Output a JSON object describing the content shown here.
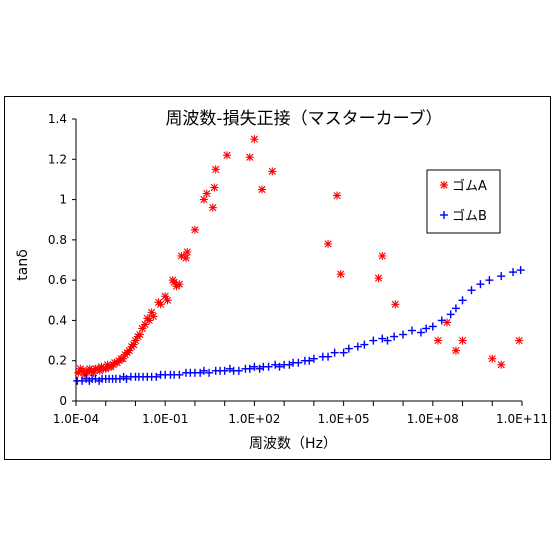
{
  "chart_data": {
    "type": "scatter",
    "title": "周波数-損失正接（マスターカーブ）",
    "xlabel": "周波数（Hz）",
    "ylabel": "tanδ",
    "x_scale": "log",
    "xlim": [
      0.0001,
      100000000000
    ],
    "ylim": [
      0,
      1.4
    ],
    "x_ticks": [
      0.0001,
      0.1,
      100,
      100000,
      100000000,
      100000000000
    ],
    "x_tick_labels": [
      "1.0E-04",
      "1.0E-01",
      "1.0E+02",
      "1.0E+05",
      "1.0E+08",
      "1.0E+11"
    ],
    "y_ticks": [
      0,
      0.2,
      0.4,
      0.6,
      0.8,
      1,
      1.2,
      1.4
    ],
    "y_tick_labels": [
      "0",
      "0.2",
      "0.4",
      "0.6",
      "0.8",
      "1",
      "1.2",
      "1.4"
    ],
    "grid": false,
    "legend_position": "right",
    "series": [
      {
        "name": "ゴムA",
        "marker": "asterisk",
        "color": "#ff0000",
        "points": [
          [
            0.00012,
            0.14
          ],
          [
            0.00014,
            0.16
          ],
          [
            0.00016,
            0.15
          ],
          [
            0.00019,
            0.13
          ],
          [
            0.00022,
            0.15
          ],
          [
            0.00025,
            0.14
          ],
          [
            0.00029,
            0.16
          ],
          [
            0.00033,
            0.15
          ],
          [
            0.00039,
            0.14
          ],
          [
            0.00046,
            0.16
          ],
          [
            0.00054,
            0.16
          ],
          [
            0.00063,
            0.15
          ],
          [
            0.00072,
            0.17
          ],
          [
            0.00083,
            0.16
          ],
          [
            0.001,
            0.16
          ],
          [
            0.00115,
            0.18
          ],
          [
            0.0013,
            0.17
          ],
          [
            0.0015,
            0.17
          ],
          [
            0.0018,
            0.18
          ],
          [
            0.002,
            0.19
          ],
          [
            0.0024,
            0.19
          ],
          [
            0.0028,
            0.2
          ],
          [
            0.0033,
            0.21
          ],
          [
            0.0038,
            0.21
          ],
          [
            0.0045,
            0.23
          ],
          [
            0.0053,
            0.24
          ],
          [
            0.0062,
            0.25
          ],
          [
            0.0074,
            0.27
          ],
          [
            0.0087,
            0.28
          ],
          [
            0.01,
            0.3
          ],
          [
            0.012,
            0.32
          ],
          [
            0.014,
            0.33
          ],
          [
            0.017,
            0.36
          ],
          [
            0.021,
            0.38
          ],
          [
            0.025,
            0.41
          ],
          [
            0.029,
            0.4
          ],
          [
            0.035,
            0.44
          ],
          [
            0.04,
            0.42
          ],
          [
            0.06,
            0.49
          ],
          [
            0.07,
            0.48
          ],
          [
            0.1,
            0.52
          ],
          [
            0.12,
            0.5
          ],
          [
            0.18,
            0.6
          ],
          [
            0.2,
            0.59
          ],
          [
            0.24,
            0.57
          ],
          [
            0.3,
            0.58
          ],
          [
            0.35,
            0.72
          ],
          [
            0.5,
            0.71
          ],
          [
            0.55,
            0.74
          ],
          [
            1,
            0.85
          ],
          [
            2,
            1
          ],
          [
            2.5,
            1.03
          ],
          [
            4,
            0.96
          ],
          [
            4.5,
            1.06
          ],
          [
            5,
            1.15
          ],
          [
            12,
            1.22
          ],
          [
            70,
            1.21
          ],
          [
            100,
            1.3
          ],
          [
            180,
            1.05
          ],
          [
            400,
            1.14
          ],
          [
            30000,
            0.78
          ],
          [
            60000,
            1.02
          ],
          [
            80000,
            0.63
          ],
          [
            1500000,
            0.61
          ],
          [
            2000000,
            0.72
          ],
          [
            5500000,
            0.48
          ],
          [
            150000000,
            0.3
          ],
          [
            300000000,
            0.39
          ],
          [
            600000000,
            0.25
          ],
          [
            1000000000,
            0.3
          ],
          [
            10000000000,
            0.21
          ],
          [
            20000000000,
            0.18
          ],
          [
            80000000000,
            0.3
          ]
        ]
      },
      {
        "name": "ゴムB",
        "marker": "plus",
        "color": "#0000ff",
        "points": [
          [
            0.00011,
            0.1
          ],
          [
            0.00016,
            0.1
          ],
          [
            0.00022,
            0.11
          ],
          [
            0.00028,
            0.1
          ],
          [
            0.00035,
            0.11
          ],
          [
            0.00045,
            0.11
          ],
          [
            0.0006,
            0.1
          ],
          [
            0.00075,
            0.11
          ],
          [
            0.001,
            0.11
          ],
          [
            0.0013,
            0.11
          ],
          [
            0.0017,
            0.11
          ],
          [
            0.0022,
            0.11
          ],
          [
            0.003,
            0.11
          ],
          [
            0.004,
            0.12
          ],
          [
            0.005,
            0.11
          ],
          [
            0.007,
            0.12
          ],
          [
            0.01,
            0.12
          ],
          [
            0.013,
            0.12
          ],
          [
            0.018,
            0.12
          ],
          [
            0.025,
            0.12
          ],
          [
            0.035,
            0.12
          ],
          [
            0.05,
            0.12
          ],
          [
            0.07,
            0.13
          ],
          [
            0.1,
            0.13
          ],
          [
            0.15,
            0.13
          ],
          [
            0.2,
            0.13
          ],
          [
            0.3,
            0.13
          ],
          [
            0.5,
            0.14
          ],
          [
            0.7,
            0.14
          ],
          [
            1,
            0.14
          ],
          [
            1.5,
            0.14
          ],
          [
            2,
            0.15
          ],
          [
            3,
            0.14
          ],
          [
            5,
            0.15
          ],
          [
            7,
            0.15
          ],
          [
            10,
            0.15
          ],
          [
            15,
            0.16
          ],
          [
            20,
            0.15
          ],
          [
            30,
            0.15
          ],
          [
            50,
            0.16
          ],
          [
            70,
            0.16
          ],
          [
            100,
            0.17
          ],
          [
            150,
            0.16
          ],
          [
            200,
            0.17
          ],
          [
            300,
            0.17
          ],
          [
            500,
            0.18
          ],
          [
            700,
            0.17
          ],
          [
            1000,
            0.18
          ],
          [
            1500,
            0.18
          ],
          [
            2000,
            0.19
          ],
          [
            3000,
            0.19
          ],
          [
            5000,
            0.2
          ],
          [
            7000,
            0.2
          ],
          [
            10000,
            0.21
          ],
          [
            20000,
            0.22
          ],
          [
            30000,
            0.22
          ],
          [
            50000,
            0.24
          ],
          [
            100000,
            0.24
          ],
          [
            150000,
            0.26
          ],
          [
            300000,
            0.27
          ],
          [
            500000,
            0.28
          ],
          [
            1000000,
            0.3
          ],
          [
            2000000,
            0.31
          ],
          [
            3000000,
            0.3
          ],
          [
            5000000,
            0.32
          ],
          [
            10000000,
            0.33
          ],
          [
            20000000,
            0.35
          ],
          [
            40000000,
            0.34
          ],
          [
            60000000,
            0.36
          ],
          [
            100000000,
            0.37
          ],
          [
            200000000,
            0.4
          ],
          [
            400000000,
            0.43
          ],
          [
            600000000,
            0.46
          ],
          [
            1000000000,
            0.5
          ],
          [
            2000000000,
            0.55
          ],
          [
            4000000000,
            0.58
          ],
          [
            8000000000,
            0.6
          ],
          [
            20000000000,
            0.62
          ],
          [
            50000000000,
            0.64
          ],
          [
            90000000000,
            0.65
          ]
        ]
      }
    ]
  }
}
